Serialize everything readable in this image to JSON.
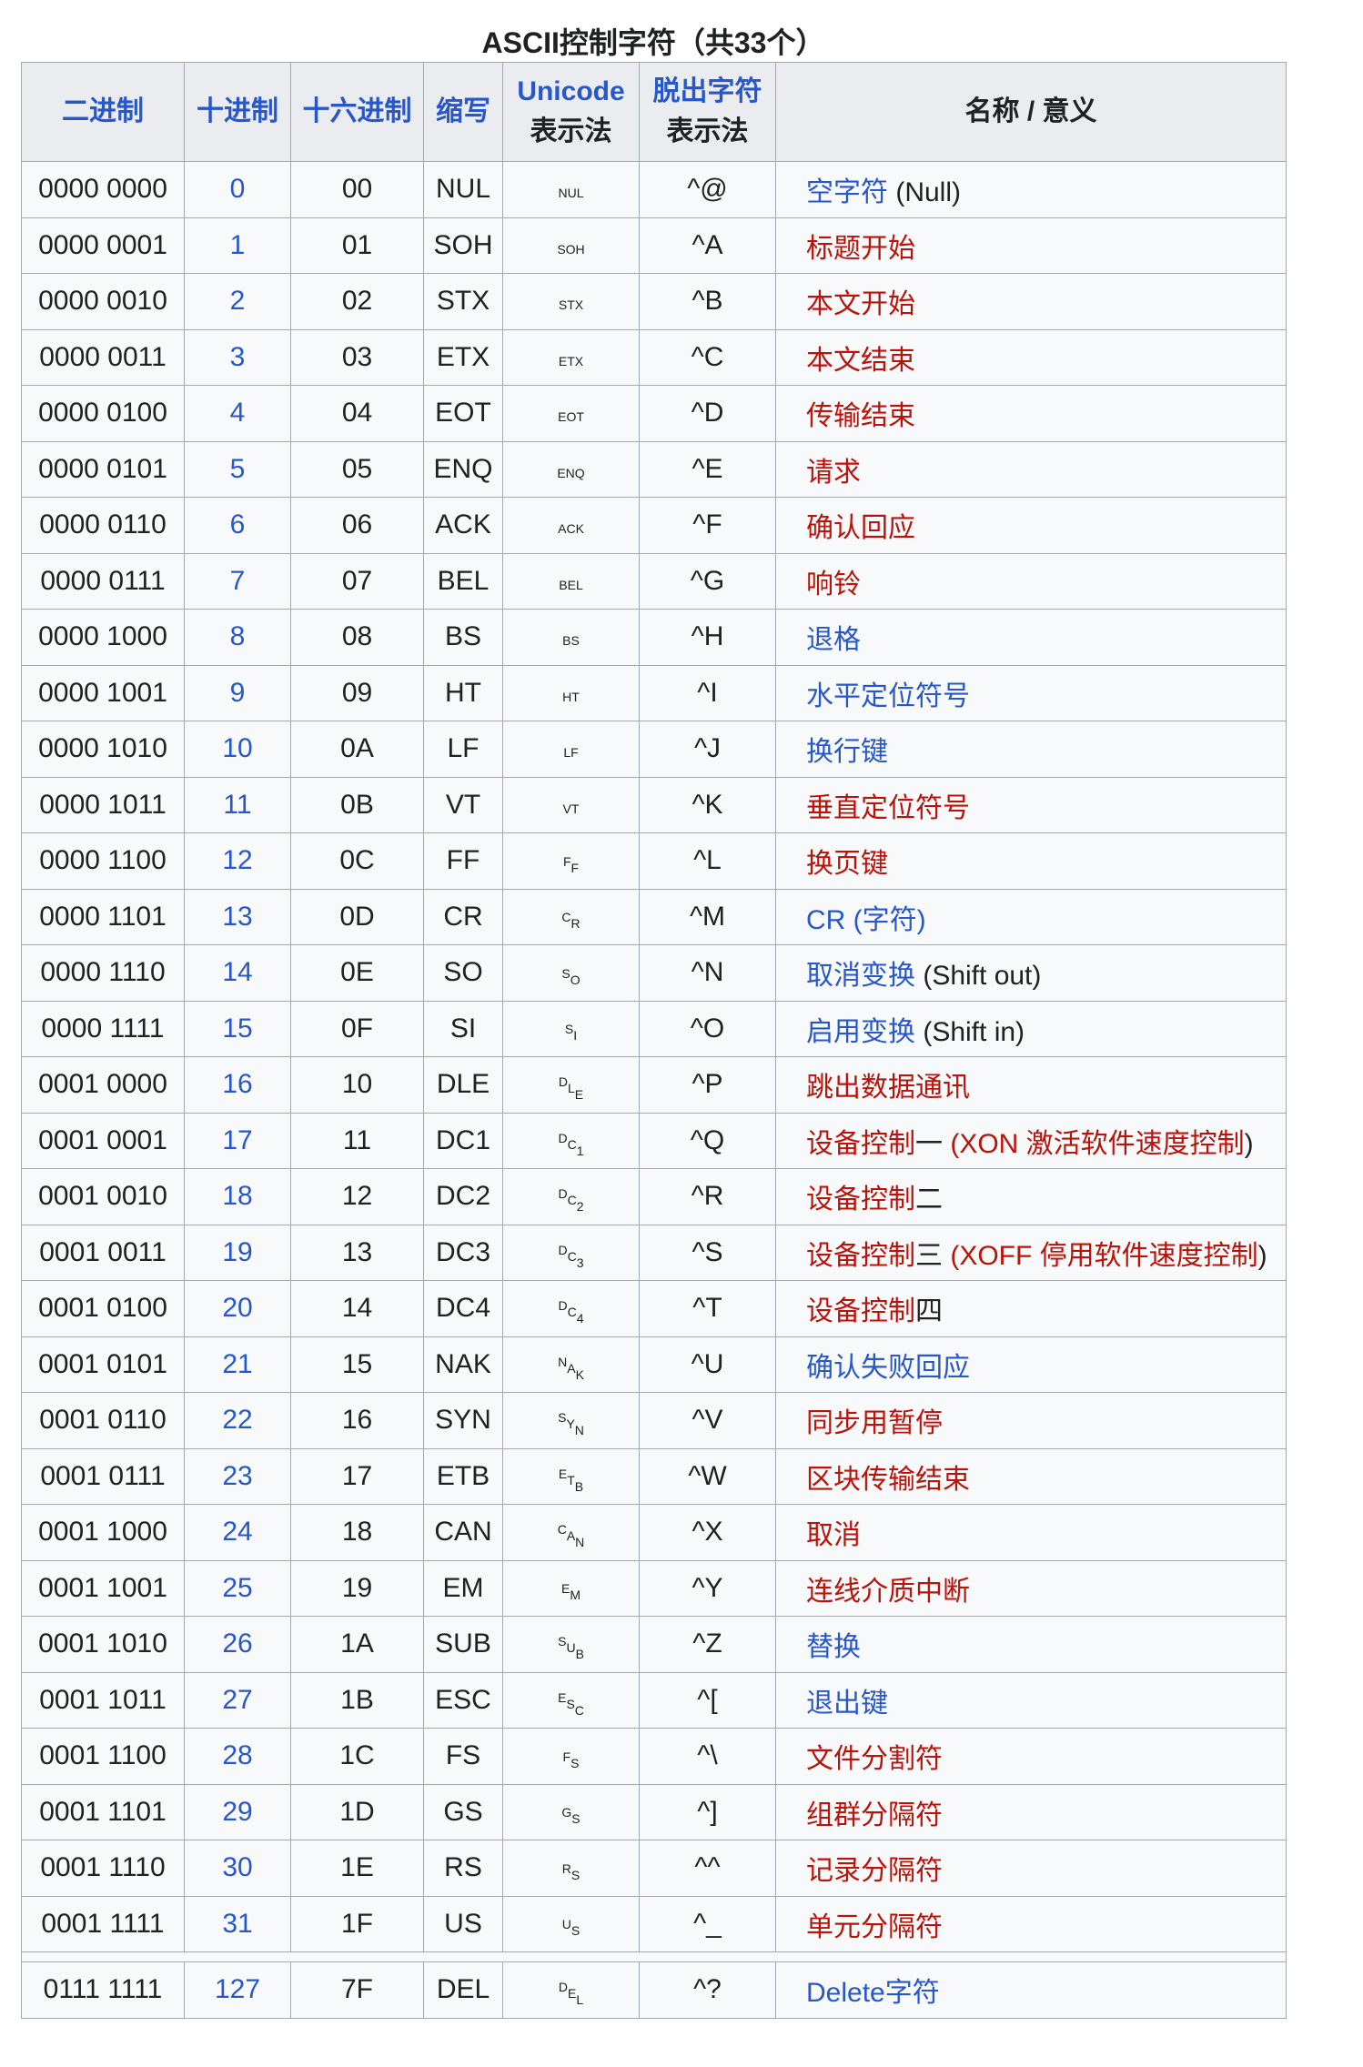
{
  "title": "ASCII控制字符（共33个）",
  "colors": {
    "link_blue": "#2857c9",
    "red_link": "#bb1209",
    "text": "#202122",
    "header_bg": "#eaecf0",
    "row_bg": "#f8f9fa",
    "border": "#a2a9b1",
    "page_bg": "#ffffff"
  },
  "table": {
    "headers": [
      {
        "label": "二进制",
        "link": true
      },
      {
        "label": "十进制",
        "link": true
      },
      {
        "label": "十六进制",
        "link": true
      },
      {
        "label": "缩写",
        "link": true
      },
      {
        "label": "Unicode",
        "sub": "表示法",
        "link": true
      },
      {
        "label": "脱出字符",
        "sub": "表示法",
        "link": true
      },
      {
        "label": "名称 / 意义",
        "link": false
      }
    ],
    "rows": [
      {
        "bin": "0000 0000",
        "dec": "0",
        "hex": "00",
        "abbr": "NUL",
        "pic": "NUL",
        "picStyle": "h",
        "char": "␀",
        "caret": "^@",
        "name": [
          [
            "空字符",
            "blue"
          ],
          [
            " (Null)",
            "black"
          ]
        ]
      },
      {
        "bin": "0000 0001",
        "dec": "1",
        "hex": "01",
        "abbr": "SOH",
        "pic": "SOH",
        "picStyle": "h",
        "char": "␁",
        "caret": "^A",
        "name": [
          [
            "标题开始",
            "red"
          ]
        ]
      },
      {
        "bin": "0000 0010",
        "dec": "2",
        "hex": "02",
        "abbr": "STX",
        "pic": "STX",
        "picStyle": "h",
        "char": "␂",
        "caret": "^B",
        "name": [
          [
            "本文开始",
            "red"
          ]
        ]
      },
      {
        "bin": "0000 0011",
        "dec": "3",
        "hex": "03",
        "abbr": "ETX",
        "pic": "ETX",
        "picStyle": "h",
        "char": "␃",
        "caret": "^C",
        "name": [
          [
            "本文结束",
            "red"
          ]
        ]
      },
      {
        "bin": "0000 0100",
        "dec": "4",
        "hex": "04",
        "abbr": "EOT",
        "pic": "EOT",
        "picStyle": "h",
        "char": "␄",
        "caret": "^D",
        "name": [
          [
            "传输结束",
            "red"
          ]
        ]
      },
      {
        "bin": "0000 0101",
        "dec": "5",
        "hex": "05",
        "abbr": "ENQ",
        "pic": "ENQ",
        "picStyle": "h",
        "char": "␅",
        "caret": "^E",
        "name": [
          [
            "请求",
            "red"
          ]
        ]
      },
      {
        "bin": "0000 0110",
        "dec": "6",
        "hex": "06",
        "abbr": "ACK",
        "pic": "ACK",
        "picStyle": "h",
        "char": "␆",
        "caret": "^F",
        "name": [
          [
            "确认回应",
            "red"
          ]
        ]
      },
      {
        "bin": "0000 0111",
        "dec": "7",
        "hex": "07",
        "abbr": "BEL",
        "pic": "BEL",
        "picStyle": "h",
        "char": "␇",
        "caret": "^G",
        "name": [
          [
            "响铃",
            "red"
          ]
        ]
      },
      {
        "bin": "0000 1000",
        "dec": "8",
        "hex": "08",
        "abbr": "BS",
        "pic": "BS",
        "picStyle": "h",
        "char": "␈",
        "caret": "^H",
        "name": [
          [
            "退格",
            "blue"
          ]
        ]
      },
      {
        "bin": "0000 1001",
        "dec": "9",
        "hex": "09",
        "abbr": "HT",
        "pic": "HT",
        "picStyle": "h",
        "char": "␉",
        "caret": "^I",
        "name": [
          [
            "水平定位符号",
            "blue"
          ]
        ]
      },
      {
        "bin": "0000 1010",
        "dec": "10",
        "hex": "0A",
        "abbr": "LF",
        "pic": "LF",
        "picStyle": "h",
        "char": "␊",
        "caret": "^J",
        "name": [
          [
            "换行键",
            "blue"
          ]
        ]
      },
      {
        "bin": "0000 1011",
        "dec": "11",
        "hex": "0B",
        "abbr": "VT",
        "pic": "VT",
        "picStyle": "h",
        "char": "␋",
        "caret": "^K",
        "name": [
          [
            "垂直定位符号",
            "red"
          ]
        ]
      },
      {
        "bin": "0000 1100",
        "dec": "12",
        "hex": "0C",
        "abbr": "FF",
        "pic": "FF",
        "picStyle": "d",
        "char": "␌",
        "caret": "^L",
        "name": [
          [
            "换页键",
            "red"
          ]
        ]
      },
      {
        "bin": "0000 1101",
        "dec": "13",
        "hex": "0D",
        "abbr": "CR",
        "pic": "CR",
        "picStyle": "d",
        "char": "␍",
        "caret": "^M",
        "name": [
          [
            "CR (字符)",
            "blue"
          ]
        ]
      },
      {
        "bin": "0000 1110",
        "dec": "14",
        "hex": "0E",
        "abbr": "SO",
        "pic": "SO",
        "picStyle": "d",
        "char": "␎",
        "caret": "^N",
        "name": [
          [
            "取消变换",
            "blue"
          ],
          [
            " (Shift out)",
            "black"
          ]
        ]
      },
      {
        "bin": "0000 1111",
        "dec": "15",
        "hex": "0F",
        "abbr": "SI",
        "pic": "SI",
        "picStyle": "d",
        "char": "␏",
        "caret": "^O",
        "name": [
          [
            "启用变换",
            "blue"
          ],
          [
            " (Shift in)",
            "black"
          ]
        ]
      },
      {
        "bin": "0001 0000",
        "dec": "16",
        "hex": "10",
        "abbr": "DLE",
        "pic": "DLE",
        "picStyle": "d",
        "char": "␐",
        "caret": "^P",
        "name": [
          [
            "跳出数据通讯",
            "red"
          ]
        ]
      },
      {
        "bin": "0001 0001",
        "dec": "17",
        "hex": "11",
        "abbr": "DC1",
        "pic": "DC1",
        "picStyle": "d",
        "char": "␑",
        "caret": "^Q",
        "name": [
          [
            "设备控制",
            "red"
          ],
          [
            "一",
            "black"
          ],
          [
            " (XON 激活软件速度控制",
            "red"
          ],
          [
            ")",
            "black"
          ]
        ]
      },
      {
        "bin": "0001 0010",
        "dec": "18",
        "hex": "12",
        "abbr": "DC2",
        "pic": "DC2",
        "picStyle": "d",
        "char": "␒",
        "caret": "^R",
        "name": [
          [
            "设备控制",
            "red"
          ],
          [
            "二",
            "black"
          ]
        ]
      },
      {
        "bin": "0001 0011",
        "dec": "19",
        "hex": "13",
        "abbr": "DC3",
        "pic": "DC3",
        "picStyle": "d",
        "char": "␓",
        "caret": "^S",
        "name": [
          [
            "设备控制",
            "red"
          ],
          [
            "三",
            "black"
          ],
          [
            " (XOFF 停用软件速度控制",
            "red"
          ],
          [
            ")",
            "black"
          ]
        ]
      },
      {
        "bin": "0001 0100",
        "dec": "20",
        "hex": "14",
        "abbr": "DC4",
        "pic": "DC4",
        "picStyle": "d",
        "char": "␔",
        "caret": "^T",
        "name": [
          [
            "设备控制",
            "red"
          ],
          [
            "四",
            "black"
          ]
        ]
      },
      {
        "bin": "0001 0101",
        "dec": "21",
        "hex": "15",
        "abbr": "NAK",
        "pic": "NAK",
        "picStyle": "d",
        "char": "␕",
        "caret": "^U",
        "name": [
          [
            "确认失败回应",
            "blue"
          ]
        ]
      },
      {
        "bin": "0001 0110",
        "dec": "22",
        "hex": "16",
        "abbr": "SYN",
        "pic": "SYN",
        "picStyle": "d",
        "char": "␖",
        "caret": "^V",
        "name": [
          [
            "同步用暂停",
            "red"
          ]
        ]
      },
      {
        "bin": "0001 0111",
        "dec": "23",
        "hex": "17",
        "abbr": "ETB",
        "pic": "ETB",
        "picStyle": "d",
        "char": "␗",
        "caret": "^W",
        "name": [
          [
            "区块传输结束",
            "red"
          ]
        ]
      },
      {
        "bin": "0001 1000",
        "dec": "24",
        "hex": "18",
        "abbr": "CAN",
        "pic": "CAN",
        "picStyle": "d",
        "char": "␘",
        "caret": "^X",
        "name": [
          [
            "取消",
            "red"
          ]
        ]
      },
      {
        "bin": "0001 1001",
        "dec": "25",
        "hex": "19",
        "abbr": "EM",
        "pic": "EM",
        "picStyle": "d",
        "char": "␙",
        "caret": "^Y",
        "name": [
          [
            "连线介质中断",
            "red"
          ]
        ]
      },
      {
        "bin": "0001 1010",
        "dec": "26",
        "hex": "1A",
        "abbr": "SUB",
        "pic": "SUB",
        "picStyle": "d",
        "char": "␚",
        "caret": "^Z",
        "name": [
          [
            "替换",
            "blue"
          ]
        ]
      },
      {
        "bin": "0001 1011",
        "dec": "27",
        "hex": "1B",
        "abbr": "ESC",
        "pic": "ESC",
        "picStyle": "d",
        "char": "␛",
        "caret": "^[",
        "name": [
          [
            "退出键",
            "blue"
          ]
        ]
      },
      {
        "bin": "0001 1100",
        "dec": "28",
        "hex": "1C",
        "abbr": "FS",
        "pic": "FS",
        "picStyle": "d",
        "char": "␜",
        "caret": "^\\",
        "name": [
          [
            "文件分割符",
            "red"
          ]
        ]
      },
      {
        "bin": "0001 1101",
        "dec": "29",
        "hex": "1D",
        "abbr": "GS",
        "pic": "GS",
        "picStyle": "d",
        "char": "␝",
        "caret": "^]",
        "name": [
          [
            "组群分隔符",
            "red"
          ]
        ]
      },
      {
        "bin": "0001 1110",
        "dec": "30",
        "hex": "1E",
        "abbr": "RS",
        "pic": "RS",
        "picStyle": "d",
        "char": "␞",
        "caret": "^^",
        "name": [
          [
            "记录分隔符",
            "red"
          ]
        ]
      },
      {
        "bin": "0001 1111",
        "dec": "31",
        "hex": "1F",
        "abbr": "US",
        "pic": "US",
        "picStyle": "d",
        "char": "␟",
        "caret": "^_",
        "name": [
          [
            "单元分隔符",
            "red"
          ]
        ]
      },
      {
        "spacer": true
      },
      {
        "bin": "0111 1111",
        "dec": "127",
        "hex": "7F",
        "abbr": "DEL",
        "pic": "DEL",
        "picStyle": "d",
        "char": "␡",
        "caret": "^?",
        "name": [
          [
            "Delete字符",
            "blue"
          ]
        ]
      }
    ]
  }
}
